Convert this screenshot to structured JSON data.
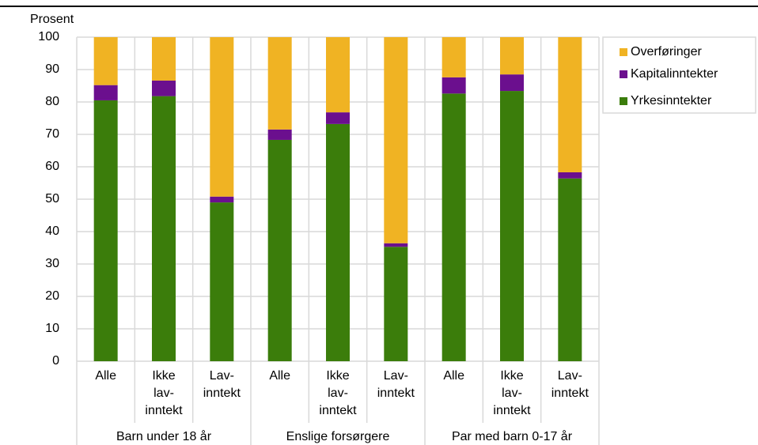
{
  "chart_data": {
    "type": "stacked_bar",
    "y_label": "Prosent",
    "categories": [
      [
        "Alle"
      ],
      [
        "Ikke",
        "lav-",
        "inntekt"
      ],
      [
        "Lav-",
        "inntekt"
      ],
      [
        "Alle"
      ],
      [
        "Ikke",
        "lav-",
        "inntekt"
      ],
      [
        "Lav-",
        "inntekt"
      ],
      [
        "Alle"
      ],
      [
        "Ikke",
        "lav-",
        "inntekt"
      ],
      [
        "Lav-",
        "inntekt"
      ]
    ],
    "groups": [
      "Barn under 18 år",
      "Enslige forsørgere",
      "Par med barn 0-17 år"
    ],
    "series": [
      {
        "name": "Yrkesinntekter",
        "color": "#3b7d0b",
        "values": [
          80.5,
          81.8,
          49.0,
          68.3,
          73.2,
          35.3,
          82.6,
          83.4,
          56.4
        ]
      },
      {
        "name": "Kapitalinntekter",
        "color": "#6b0f8e",
        "values": [
          4.7,
          4.8,
          1.8,
          3.2,
          3.6,
          1.1,
          5.0,
          5.1,
          1.9
        ]
      },
      {
        "name": "Overføringer",
        "color": "#f0b323",
        "values": [
          14.8,
          13.4,
          49.2,
          28.5,
          23.2,
          63.6,
          12.4,
          11.5,
          41.7
        ]
      }
    ],
    "ylim": [
      0,
      100
    ],
    "yticks": [
      0,
      10,
      20,
      30,
      40,
      50,
      60,
      70,
      80,
      90,
      100
    ],
    "grid": true
  }
}
